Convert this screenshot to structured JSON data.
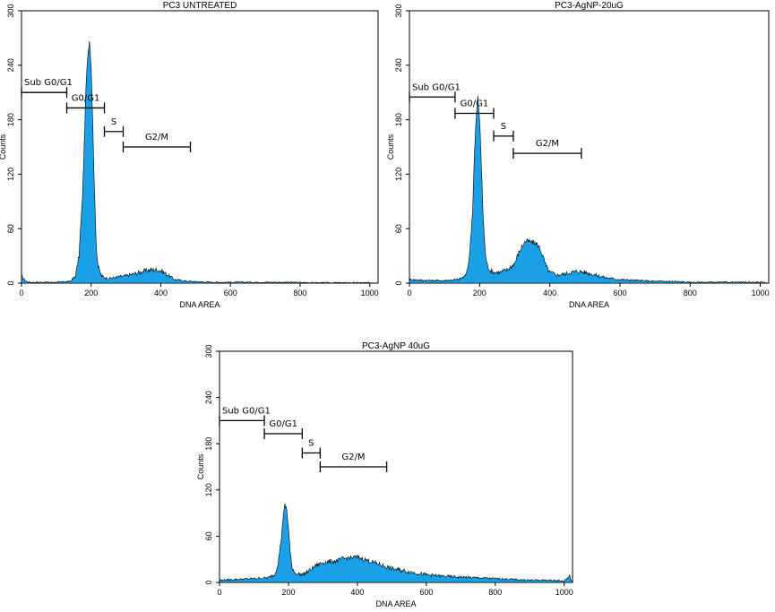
{
  "chart_data": [
    {
      "type": "area",
      "title": "PC3 UNTREATED",
      "xlabel": "DNA AREA",
      "ylabel": "Counts",
      "xlim": [
        0,
        1024
      ],
      "ylim": [
        0,
        300
      ],
      "xticks": [
        0,
        200,
        400,
        600,
        800,
        1000
      ],
      "yticks": [
        0,
        60,
        120,
        180,
        240,
        300
      ],
      "fill_color": "#1aa0e6",
      "x": [
        0,
        10,
        20,
        50,
        100,
        140,
        155,
        165,
        175,
        180,
        185,
        190,
        195,
        200,
        205,
        210,
        215,
        220,
        230,
        240,
        250,
        280,
        300,
        330,
        360,
        380,
        400,
        420,
        440,
        480,
        550,
        650,
        750,
        850,
        950,
        1015,
        1024
      ],
      "y": [
        8,
        3,
        1,
        1,
        1,
        2,
        8,
        30,
        95,
        150,
        215,
        250,
        268,
        240,
        170,
        95,
        40,
        18,
        8,
        6,
        5,
        7,
        8,
        11,
        14,
        15,
        14,
        9,
        4,
        2,
        1,
        1,
        1,
        0.5,
        0.5,
        0.5,
        0
      ],
      "gates": [
        {
          "label": "Sub G0/G1",
          "x1": 0,
          "x2": 130,
          "y": 210
        },
        {
          "label": "G0/G1",
          "x1": 130,
          "x2": 238,
          "y": 193
        },
        {
          "label": "S",
          "x1": 238,
          "x2": 292,
          "y": 167
        },
        {
          "label": "G2/M",
          "x1": 292,
          "x2": 485,
          "y": 150
        }
      ]
    },
    {
      "type": "area",
      "title": "PC3-AgNP-20uG",
      "xlabel": "DNA AREA",
      "ylabel": "Counts",
      "xlim": [
        0,
        1024
      ],
      "ylim": [
        0,
        300
      ],
      "xticks": [
        0,
        200,
        400,
        600,
        800,
        1000
      ],
      "yticks": [
        0,
        60,
        120,
        180,
        240,
        300
      ],
      "fill_color": "#1aa0e6",
      "x": [
        0,
        50,
        100,
        140,
        160,
        170,
        180,
        185,
        190,
        195,
        200,
        205,
        210,
        215,
        220,
        230,
        240,
        260,
        280,
        300,
        310,
        320,
        330,
        340,
        350,
        360,
        370,
        380,
        390,
        400,
        420,
        440,
        460,
        480,
        500,
        520,
        560,
        600,
        650,
        700,
        750,
        800,
        900,
        1000,
        1024
      ],
      "y": [
        4,
        3,
        3,
        4,
        8,
        25,
        80,
        140,
        180,
        205,
        180,
        130,
        75,
        40,
        22,
        14,
        12,
        12,
        15,
        22,
        32,
        40,
        46,
        46,
        45,
        44,
        40,
        30,
        18,
        12,
        9,
        10,
        12,
        13,
        12,
        10,
        6,
        4,
        3,
        2,
        2,
        1,
        1,
        1,
        0
      ],
      "gates": [
        {
          "label": "Sub G0/G1",
          "x1": 0,
          "x2": 130,
          "y": 205
        },
        {
          "label": "G0/G1",
          "x1": 130,
          "x2": 240,
          "y": 187
        },
        {
          "label": "S",
          "x1": 240,
          "x2": 296,
          "y": 162
        },
        {
          "label": "G2/M",
          "x1": 296,
          "x2": 490,
          "y": 143
        }
      ]
    },
    {
      "type": "area",
      "title": "PC3-AgNP 40uG",
      "xlabel": "DNA AREA",
      "ylabel": "Counts",
      "xlim": [
        0,
        1024
      ],
      "ylim": [
        0,
        300
      ],
      "xticks": [
        0,
        200,
        400,
        600,
        800,
        1000
      ],
      "yticks": [
        0,
        60,
        120,
        180,
        240,
        300
      ],
      "fill_color": "#1aa0e6",
      "x": [
        0,
        50,
        100,
        140,
        160,
        170,
        180,
        185,
        190,
        195,
        200,
        205,
        210,
        220,
        240,
        260,
        280,
        300,
        320,
        340,
        360,
        380,
        400,
        420,
        440,
        460,
        480,
        500,
        550,
        600,
        650,
        700,
        750,
        800,
        850,
        900,
        950,
        1000,
        1015,
        1024
      ],
      "y": [
        3,
        4,
        5,
        6,
        10,
        25,
        60,
        88,
        100,
        95,
        70,
        40,
        20,
        12,
        10,
        15,
        22,
        26,
        27,
        28,
        31,
        32,
        33,
        30,
        27,
        24,
        21,
        18,
        14,
        10,
        8,
        7,
        6,
        5,
        4,
        3,
        3,
        2,
        8,
        0
      ],
      "gates": [
        {
          "label": "Sub G0/G1",
          "x1": 0,
          "x2": 130,
          "y": 210
        },
        {
          "label": "G0/G1",
          "x1": 130,
          "x2": 240,
          "y": 193
        },
        {
          "label": "S",
          "x1": 240,
          "x2": 292,
          "y": 168
        },
        {
          "label": "G2/M",
          "x1": 292,
          "x2": 485,
          "y": 150
        }
      ]
    }
  ]
}
